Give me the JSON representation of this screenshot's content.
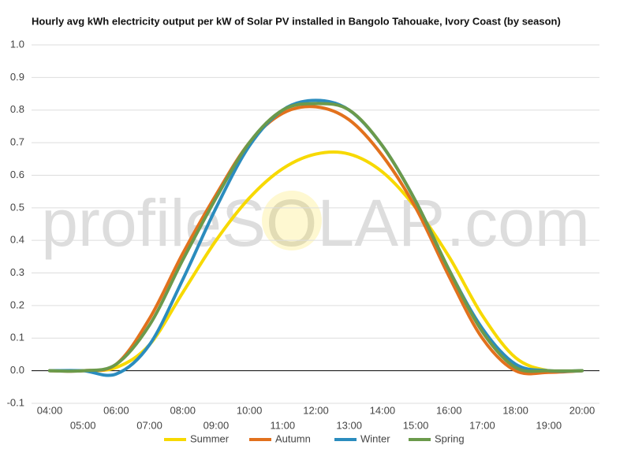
{
  "chart_data": {
    "type": "line",
    "title": "Hourly avg kWh electricity output per kW of Solar PV installed in Bangolo Tahouake, Ivory Coast (by season)",
    "watermark": "profileSOLAR.com",
    "categories": [
      "04:00",
      "05:00",
      "06:00",
      "07:00",
      "08:00",
      "09:00",
      "10:00",
      "11:00",
      "12:00",
      "13:00",
      "14:00",
      "15:00",
      "16:00",
      "17:00",
      "18:00",
      "19:00",
      "20:00"
    ],
    "series": [
      {
        "name": "Summer",
        "color": "#f7d900",
        "values": [
          0,
          0,
          0.01,
          0.08,
          0.24,
          0.4,
          0.53,
          0.62,
          0.665,
          0.665,
          0.61,
          0.5,
          0.35,
          0.17,
          0.04,
          0.0,
          0
        ]
      },
      {
        "name": "Autumn",
        "color": "#e2711d",
        "values": [
          0,
          0,
          0.02,
          0.16,
          0.36,
          0.54,
          0.7,
          0.79,
          0.81,
          0.77,
          0.66,
          0.5,
          0.29,
          0.1,
          0.0,
          -0.005,
          0
        ]
      },
      {
        "name": "Winter",
        "color": "#2b8cbe",
        "values": [
          0,
          0,
          -0.01,
          0.08,
          0.28,
          0.5,
          0.69,
          0.8,
          0.83,
          0.8,
          0.69,
          0.52,
          0.31,
          0.13,
          0.02,
          0,
          0
        ]
      },
      {
        "name": "Spring",
        "color": "#6b9a4b",
        "values": [
          0,
          0,
          0.02,
          0.14,
          0.34,
          0.53,
          0.7,
          0.8,
          0.82,
          0.8,
          0.69,
          0.52,
          0.31,
          0.12,
          0.01,
          0,
          0
        ]
      }
    ],
    "ylim": [
      -0.1,
      1.0
    ],
    "yticks": [
      -0.1,
      {
        "value": 0,
        "label": "0.0"
      },
      0.1,
      0.2,
      0.3,
      0.4,
      0.5,
      0.6,
      0.7,
      0.8,
      0.9,
      {
        "value": 1,
        "label": "1.0"
      }
    ],
    "grid": true,
    "legend": "bottom"
  }
}
